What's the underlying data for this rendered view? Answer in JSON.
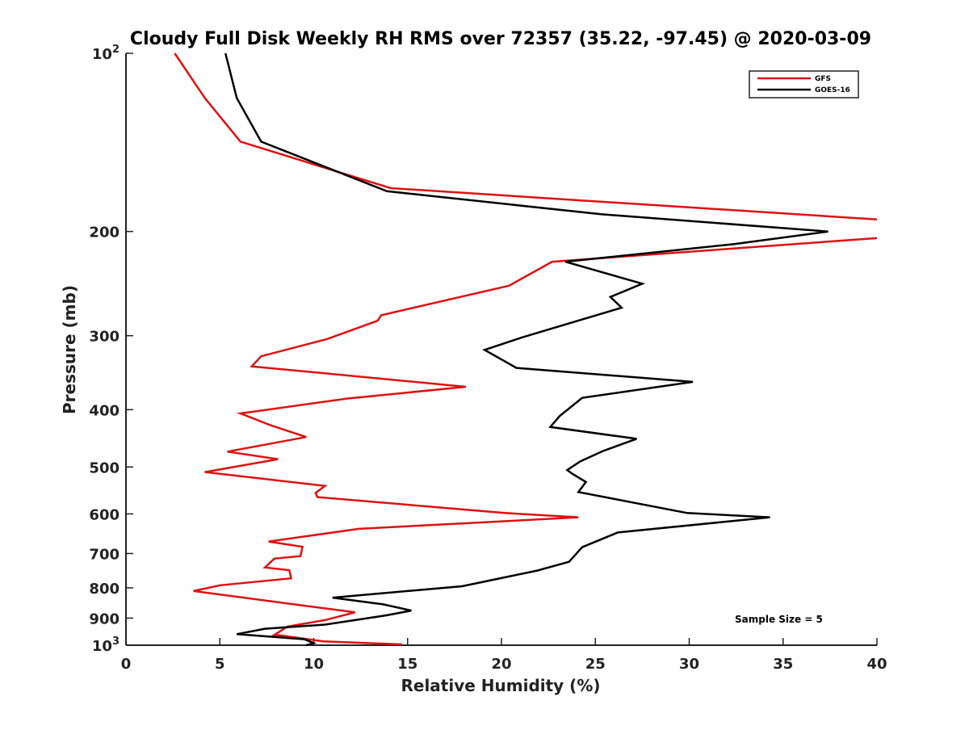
{
  "chart_data": {
    "type": "line",
    "title": "Cloudy Full Disk Weekly RH RMS over 72357 (35.22, -97.45) @ 2020-03-09",
    "xlabel": "Relative Humidity (%)",
    "ylabel": "Pressure (mb)",
    "xlim": [
      0,
      40
    ],
    "ylim": [
      100,
      1000
    ],
    "yscale": "log",
    "y_reversed": true,
    "grid": false,
    "legend_position": "top-right",
    "xticks": [
      "0",
      "5",
      "10",
      "15",
      "20",
      "25",
      "30",
      "35",
      "40"
    ],
    "yticks": [
      {
        "value": 100,
        "base": "10",
        "exp": "2"
      },
      {
        "value": 200,
        "label": "200"
      },
      {
        "value": 300,
        "label": "300"
      },
      {
        "value": 400,
        "label": "400"
      },
      {
        "value": 500,
        "label": "500"
      },
      {
        "value": 600,
        "label": "600"
      },
      {
        "value": 700,
        "label": "700"
      },
      {
        "value": 800,
        "label": "800"
      },
      {
        "value": 900,
        "label": "900"
      },
      {
        "value": 1000,
        "base": "10",
        "exp": "3"
      }
    ],
    "series": [
      {
        "name": "GFS",
        "color": "#e01010",
        "points": [
          [
            2.6,
            100
          ],
          [
            4.2,
            119
          ],
          [
            6.1,
            141
          ],
          [
            14.1,
            169
          ],
          [
            40.2,
            191
          ],
          [
            40.2,
            205
          ],
          [
            22.7,
            225
          ],
          [
            20.4,
            247
          ],
          [
            13.6,
            277
          ],
          [
            13.4,
            283
          ],
          [
            10.7,
            304
          ],
          [
            7.2,
            325
          ],
          [
            6.7,
            338
          ],
          [
            18.1,
            366
          ],
          [
            11.8,
            383
          ],
          [
            6.1,
            406
          ],
          [
            7.7,
            425
          ],
          [
            9.6,
            445
          ],
          [
            5.4,
            471
          ],
          [
            8.1,
            485
          ],
          [
            4.2,
            510
          ],
          [
            10.6,
            538
          ],
          [
            10.1,
            553
          ],
          [
            10.2,
            562
          ],
          [
            20.2,
            598
          ],
          [
            24.1,
            608
          ],
          [
            12.4,
            636
          ],
          [
            7.6,
            668
          ],
          [
            9.4,
            682
          ],
          [
            9.3,
            707
          ],
          [
            7.9,
            714
          ],
          [
            7.4,
            739
          ],
          [
            8.7,
            747
          ],
          [
            8.8,
            771
          ],
          [
            5.0,
            792
          ],
          [
            3.6,
            810
          ],
          [
            10.4,
            865
          ],
          [
            12.2,
            880
          ],
          [
            10.6,
            907
          ],
          [
            8.6,
            930
          ],
          [
            7.9,
            961
          ],
          [
            8.2,
            962
          ],
          [
            10.5,
            985
          ],
          [
            14.7,
            997
          ]
        ]
      },
      {
        "name": "GOES-16",
        "color": "#000000",
        "points": [
          [
            5.3,
            100
          ],
          [
            5.9,
            119
          ],
          [
            7.2,
            141
          ],
          [
            13.9,
            171
          ],
          [
            25.3,
            187
          ],
          [
            37.4,
            200
          ],
          [
            32.4,
            210
          ],
          [
            23.4,
            225
          ],
          [
            27.5,
            245
          ],
          [
            25.8,
            258
          ],
          [
            26.4,
            269
          ],
          [
            21.1,
            302
          ],
          [
            19.1,
            317
          ],
          [
            20.8,
            340
          ],
          [
            30.2,
            359
          ],
          [
            24.3,
            382
          ],
          [
            23.1,
            410
          ],
          [
            22.6,
            428
          ],
          [
            27.2,
            448
          ],
          [
            25.4,
            470
          ],
          [
            24.2,
            489
          ],
          [
            23.5,
            506
          ],
          [
            23.8,
            514
          ],
          [
            24.5,
            530
          ],
          [
            24.1,
            551
          ],
          [
            29.9,
            598
          ],
          [
            34.3,
            608
          ],
          [
            26.2,
            645
          ],
          [
            24.3,
            683
          ],
          [
            23.6,
            723
          ],
          [
            21.9,
            748
          ],
          [
            17.9,
            795
          ],
          [
            11.0,
            831
          ],
          [
            13.7,
            853
          ],
          [
            15.2,
            874
          ],
          [
            13.9,
            890
          ],
          [
            10.6,
            923
          ],
          [
            7.4,
            938
          ],
          [
            5.9,
            958
          ],
          [
            9.5,
            977
          ],
          [
            10.0,
            992
          ],
          [
            9.9,
            994
          ],
          [
            9.6,
            1000
          ]
        ]
      }
    ],
    "annotation": "Sample Size = 5"
  }
}
